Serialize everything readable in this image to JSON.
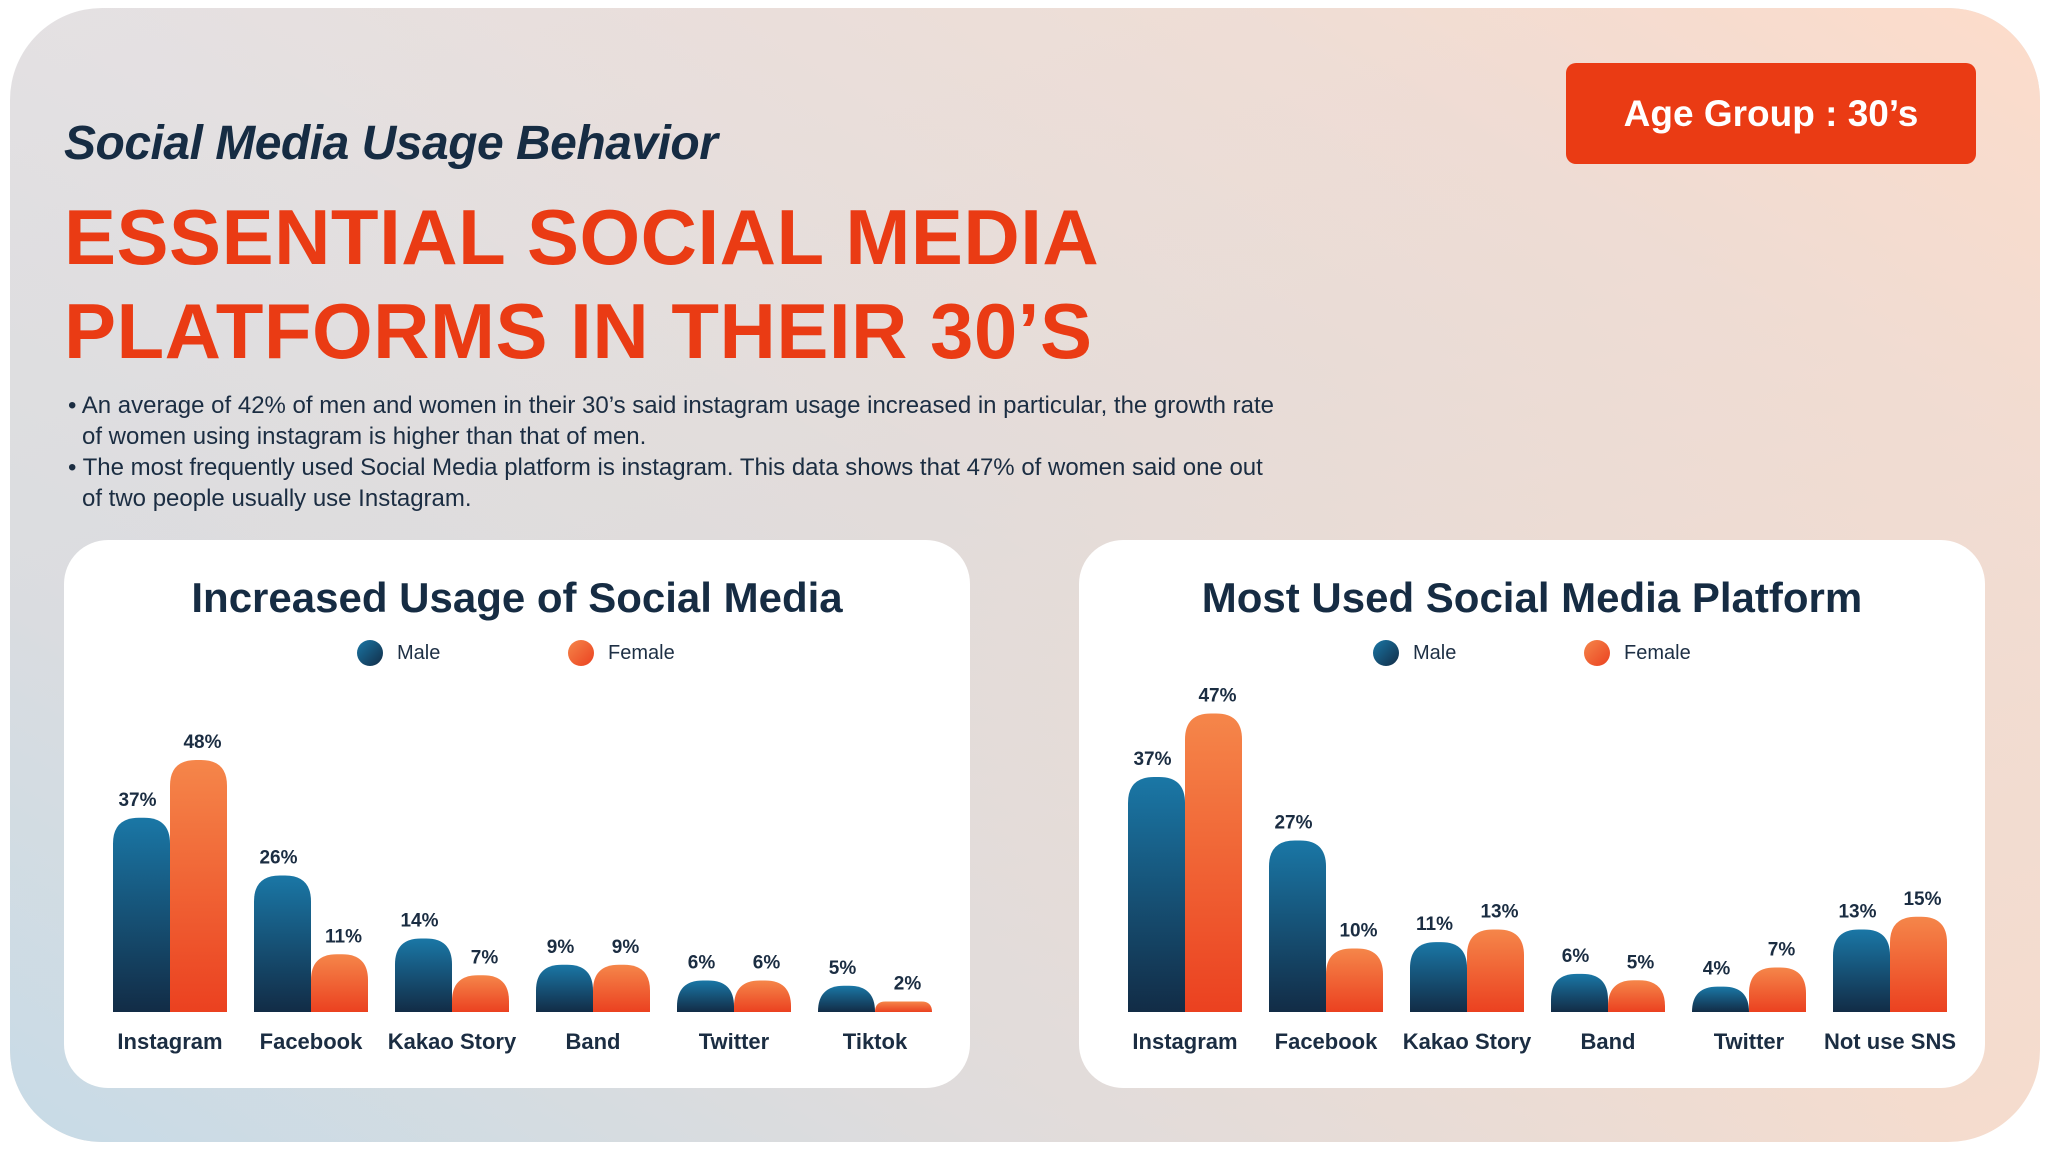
{
  "header": {
    "subtitle": "Social Media Usage Behavior",
    "headline_line1": "ESSENTIAL SOCIAL MEDIA",
    "headline_line2": "PLATFORMS IN THEIR 30’S",
    "age_badge": "Age Group : 30’s",
    "bullets": [
      "An average of 42% of men and women in their 30’s said instagram usage increased in particular, the growth rate of women using instagram is higher than that of men.",
      "The most frequently used Social Media platform is instagram. This data shows that 47% of women said one out of two people usually use Instagram."
    ]
  },
  "colors": {
    "accent": "#ea3b14",
    "navy": "#162c43",
    "male_top": "#1a77a6",
    "male_bottom": "#122c46",
    "female_top": "#f5864a",
    "female_bottom": "#eb4120"
  },
  "chart_data": [
    {
      "type": "bar",
      "title": "Increased Usage of Social Media",
      "xlabel": "",
      "ylabel": "",
      "ylim": [
        0,
        50
      ],
      "grid": false,
      "legend": "top-center",
      "categories": [
        "Instagram",
        "Facebook",
        "Kakao Story",
        "Band",
        "Twitter",
        "Tiktok"
      ],
      "series": [
        {
          "name": "Male",
          "values": [
            37,
            26,
            14,
            9,
            6,
            5
          ],
          "labels": [
            "37%",
            "26%",
            "14%",
            "9%",
            "6%",
            "5%"
          ]
        },
        {
          "name": "Female",
          "values": [
            48,
            11,
            7,
            9,
            6,
            2
          ],
          "labels": [
            "48%",
            "11%",
            "7%",
            "9%",
            "6%",
            "2%"
          ]
        }
      ]
    },
    {
      "type": "bar",
      "title": "Most Used Social Media Platform",
      "xlabel": "",
      "ylabel": "",
      "ylim": [
        0,
        50
      ],
      "grid": false,
      "legend": "top-center",
      "categories": [
        "Instagram",
        "Facebook",
        "Kakao Story",
        "Band",
        "Twitter",
        "Not use SNS"
      ],
      "series": [
        {
          "name": "Male",
          "values": [
            37,
            27,
            11,
            6,
            4,
            13
          ],
          "labels": [
            "37%",
            "27%",
            "11%",
            "6%",
            "4%",
            "13%"
          ]
        },
        {
          "name": "Female",
          "values": [
            47,
            10,
            13,
            5,
            7,
            15
          ],
          "labels": [
            "47%",
            "10%",
            "13%",
            "5%",
            "7%",
            "15%"
          ]
        }
      ]
    }
  ]
}
